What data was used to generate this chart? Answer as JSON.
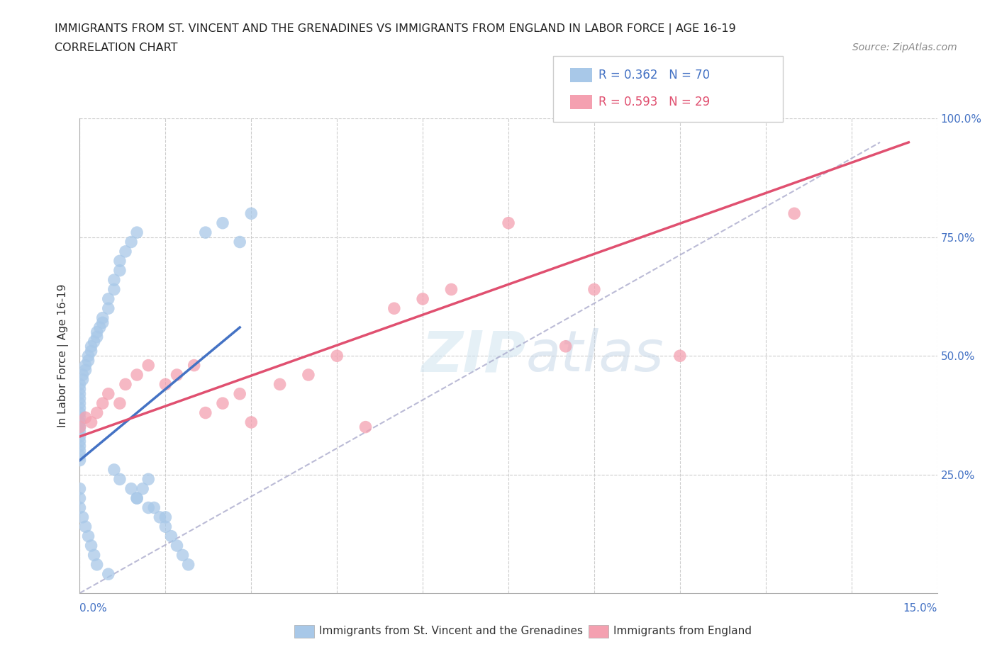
{
  "title_line1": "IMMIGRANTS FROM ST. VINCENT AND THE GRENADINES VS IMMIGRANTS FROM ENGLAND IN LABOR FORCE | AGE 16-19",
  "title_line2": "CORRELATION CHART",
  "source": "Source: ZipAtlas.com",
  "ylabel": "In Labor Force | Age 16-19",
  "xlim": [
    0.0,
    15.0
  ],
  "ylim": [
    0.0,
    100.0
  ],
  "legend_r1": "R = 0.362",
  "legend_n1": "N = 70",
  "legend_r2": "R = 0.593",
  "legend_n2": "N = 29",
  "watermark": "ZIPatlas",
  "color_blue": "#a8c8e8",
  "color_blue_dark": "#4472c4",
  "color_pink": "#f4a0b0",
  "color_pink_dark": "#e05070",
  "color_dashed": "#aaaacc",
  "blue_dots_x": [
    0.0,
    0.0,
    0.0,
    0.0,
    0.0,
    0.0,
    0.0,
    0.0,
    0.0,
    0.0,
    0.0,
    0.0,
    0.0,
    0.0,
    0.0,
    0.0,
    0.0,
    0.05,
    0.05,
    0.1,
    0.1,
    0.15,
    0.15,
    0.2,
    0.2,
    0.25,
    0.3,
    0.3,
    0.35,
    0.4,
    0.4,
    0.5,
    0.5,
    0.6,
    0.6,
    0.7,
    0.7,
    0.8,
    0.9,
    1.0,
    1.0,
    1.1,
    1.2,
    1.3,
    1.4,
    1.5,
    1.6,
    1.7,
    1.8,
    1.9,
    0.0,
    0.0,
    0.0,
    0.05,
    0.1,
    0.15,
    0.2,
    0.25,
    0.3,
    0.5,
    0.6,
    0.7,
    0.9,
    1.0,
    1.2,
    1.5,
    2.5,
    3.0,
    2.2,
    2.8
  ],
  "blue_dots_y": [
    33.0,
    34.0,
    35.0,
    36.0,
    37.0,
    38.0,
    39.0,
    40.0,
    41.0,
    42.0,
    30.0,
    31.0,
    32.0,
    28.0,
    29.0,
    43.0,
    44.0,
    45.0,
    46.0,
    47.0,
    48.0,
    49.0,
    50.0,
    51.0,
    52.0,
    53.0,
    54.0,
    55.0,
    56.0,
    57.0,
    58.0,
    60.0,
    62.0,
    64.0,
    66.0,
    68.0,
    70.0,
    72.0,
    74.0,
    76.0,
    20.0,
    22.0,
    24.0,
    18.0,
    16.0,
    14.0,
    12.0,
    10.0,
    8.0,
    6.0,
    22.0,
    20.0,
    18.0,
    16.0,
    14.0,
    12.0,
    10.0,
    8.0,
    6.0,
    4.0,
    26.0,
    24.0,
    22.0,
    20.0,
    18.0,
    16.0,
    78.0,
    80.0,
    76.0,
    74.0
  ],
  "pink_dots_x": [
    0.0,
    0.1,
    0.2,
    0.3,
    0.4,
    0.5,
    0.7,
    0.8,
    1.0,
    1.2,
    1.5,
    1.7,
    2.0,
    2.2,
    2.5,
    2.8,
    3.0,
    3.5,
    4.0,
    4.5,
    5.0,
    5.5,
    6.0,
    6.5,
    7.5,
    8.5,
    9.0,
    10.5,
    12.5
  ],
  "pink_dots_y": [
    35.0,
    37.0,
    36.0,
    38.0,
    40.0,
    42.0,
    40.0,
    44.0,
    46.0,
    48.0,
    44.0,
    46.0,
    48.0,
    38.0,
    40.0,
    42.0,
    36.0,
    44.0,
    46.0,
    50.0,
    35.0,
    60.0,
    62.0,
    64.0,
    78.0,
    52.0,
    64.0,
    50.0,
    80.0
  ],
  "blue_line_x": [
    0.0,
    2.8
  ],
  "blue_line_y": [
    28.0,
    56.0
  ],
  "pink_line_x": [
    0.0,
    14.5
  ],
  "pink_line_y": [
    33.0,
    95.0
  ],
  "dash_line_x": [
    0.0,
    14.0
  ],
  "dash_line_y": [
    0.0,
    95.0
  ]
}
